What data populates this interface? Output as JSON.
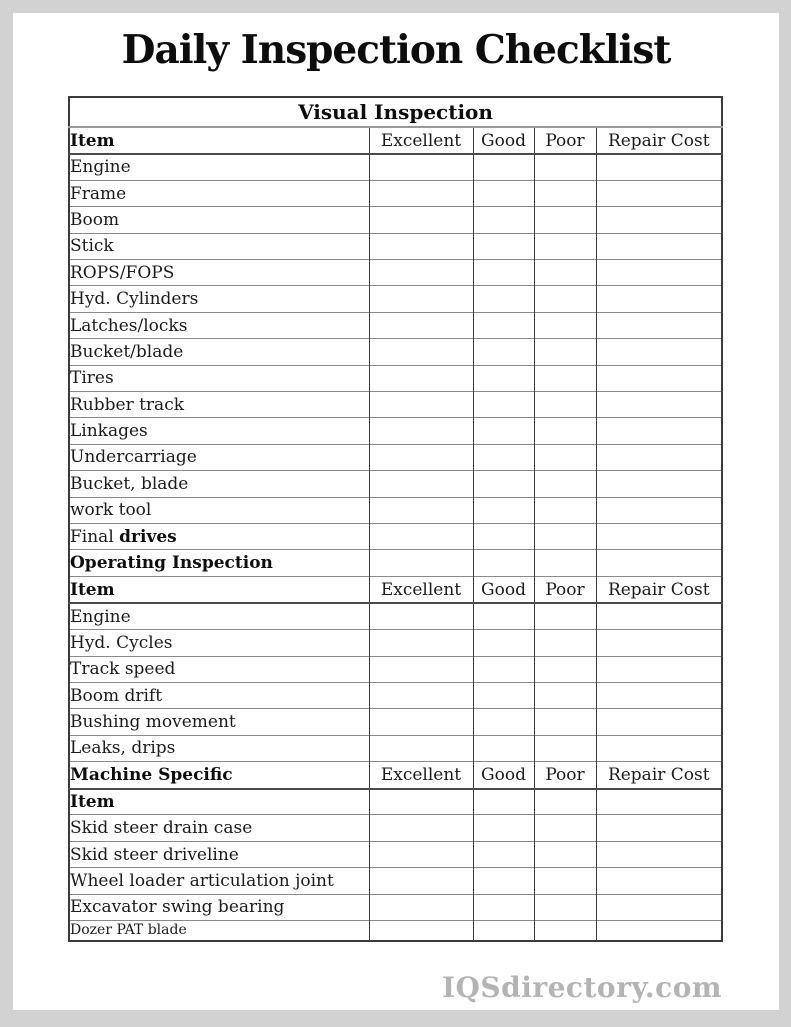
{
  "page": {
    "title": "Daily Inspection Checklist",
    "watermark": "IQSdirectory.com"
  },
  "colors": {
    "page_background": "#ffffff",
    "frame": "#d2d2d2",
    "text": "#1b1b1b",
    "border_vertical": "#3b3b3b",
    "border_horizontal": "#8a8a8a",
    "watermark": "#b4b4b4"
  },
  "table": {
    "columns": [
      "Item",
      "Excellent",
      "Good",
      "Poor",
      "Repair Cost"
    ],
    "rows": [
      {
        "type": "title",
        "label": "Visual Inspection"
      },
      {
        "type": "header",
        "label": "Item",
        "cols": [
          "Excellent",
          "Good",
          "Poor",
          "Repair Cost"
        ]
      },
      {
        "type": "item",
        "label": "Engine"
      },
      {
        "type": "item",
        "label": "Frame"
      },
      {
        "type": "item",
        "label": "Boom"
      },
      {
        "type": "item",
        "label": "Stick"
      },
      {
        "type": "item",
        "label": "ROPS/FOPS"
      },
      {
        "type": "item",
        "label": "Hyd. Cylinders"
      },
      {
        "type": "item",
        "label": "Latches/locks"
      },
      {
        "type": "item",
        "label": "Bucket/blade"
      },
      {
        "type": "item",
        "label": "Tires"
      },
      {
        "type": "item",
        "label": "Rubber track"
      },
      {
        "type": "item",
        "label": "Linkages"
      },
      {
        "type": "item",
        "label": "Undercarriage"
      },
      {
        "type": "item",
        "label": "Bucket, blade"
      },
      {
        "type": "item",
        "label": "work tool"
      },
      {
        "type": "item",
        "label": "Final ",
        "bold_part": "drives"
      },
      {
        "type": "section",
        "label": "Operating Inspection"
      },
      {
        "type": "header",
        "label": "Item",
        "cols": [
          "Excellent",
          "Good",
          "Poor",
          "Repair Cost"
        ]
      },
      {
        "type": "item",
        "label": "Engine"
      },
      {
        "type": "item",
        "label": "Hyd. Cycles"
      },
      {
        "type": "item",
        "label": "Track speed"
      },
      {
        "type": "item",
        "label": "Boom drift"
      },
      {
        "type": "item",
        "label": "Bushing movement"
      },
      {
        "type": "item",
        "label": "Leaks, drips"
      },
      {
        "type": "header",
        "label": "Machine Specific",
        "cols": [
          "Excellent",
          "Good",
          "Poor",
          "Repair Cost"
        ]
      },
      {
        "type": "section",
        "label": "Item"
      },
      {
        "type": "item",
        "label": "Skid steer drain case"
      },
      {
        "type": "item",
        "label": "Skid steer driveline"
      },
      {
        "type": "item",
        "label": "Wheel loader articulation joint"
      },
      {
        "type": "item",
        "label": "Excavator swing bearing"
      },
      {
        "type": "item",
        "label": "Dozer PAT blade",
        "small": true
      }
    ]
  }
}
